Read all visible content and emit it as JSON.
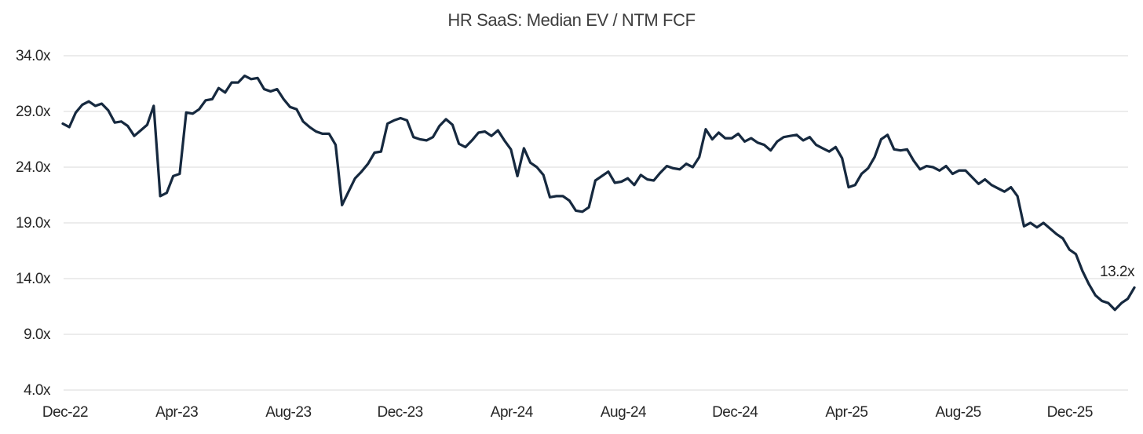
{
  "chart_data": {
    "type": "line",
    "title": "HR SaaS: Median EV / NTM FCF",
    "x_tick_labels": [
      "Dec-22",
      "Apr-23",
      "Aug-23",
      "Dec-23",
      "Apr-24",
      "Aug-24",
      "Dec-24",
      "Apr-25",
      "Aug-25",
      "Dec-25"
    ],
    "y_tick_labels": [
      "34.0x",
      "29.0x",
      "24.0x",
      "19.0x",
      "14.0x",
      "9.0x",
      "4.0x"
    ],
    "y_tick_values": [
      34,
      29,
      24,
      19,
      14,
      9,
      4
    ],
    "ylim": [
      4,
      34
    ],
    "grid": "horizontal-only",
    "legend_position": "none",
    "annotation": {
      "text": "13.2x",
      "value": 13.2
    },
    "colors": {
      "line": "#16293f",
      "gridline": "#d9d9d9",
      "axis_text": "#262626",
      "title_text": "#3d3d3d",
      "background": "#ffffff"
    },
    "series": [
      {
        "values": [
          27.9,
          27.6,
          28.9,
          29.6,
          29.9,
          29.5,
          29.7,
          29.1,
          28.0,
          28.1,
          27.7,
          26.8,
          27.3,
          27.8,
          29.5,
          21.4,
          21.7,
          23.2,
          23.4,
          28.9,
          28.8,
          29.2,
          30.0,
          30.1,
          31.1,
          30.7,
          31.6,
          31.6,
          32.2,
          31.9,
          32.0,
          31.0,
          30.8,
          31.0,
          30.1,
          29.4,
          29.2,
          28.1,
          27.6,
          27.2,
          27.0,
          27.0,
          26.0,
          20.6,
          21.8,
          23.0,
          23.6,
          24.3,
          25.3,
          25.4,
          27.9,
          28.2,
          28.4,
          28.2,
          26.7,
          26.5,
          26.4,
          26.7,
          27.7,
          28.3,
          27.8,
          26.1,
          25.8,
          26.4,
          27.1,
          27.2,
          26.8,
          27.3,
          26.4,
          25.6,
          23.2,
          25.7,
          24.4,
          24.0,
          23.3,
          21.3,
          21.4,
          21.4,
          21.0,
          20.1,
          20.0,
          20.4,
          22.8,
          23.2,
          23.6,
          22.6,
          22.7,
          23.0,
          22.4,
          23.3,
          22.9,
          22.8,
          23.5,
          24.1,
          23.9,
          23.8,
          24.3,
          24.0,
          24.9,
          27.4,
          26.5,
          27.1,
          26.6,
          26.6,
          27.0,
          26.3,
          26.6,
          26.2,
          26.0,
          25.5,
          26.3,
          26.7,
          26.8,
          26.9,
          26.4,
          26.7,
          26.0,
          25.7,
          25.4,
          25.8,
          24.8,
          22.2,
          22.4,
          23.4,
          23.9,
          24.9,
          26.5,
          26.9,
          25.6,
          25.5,
          25.6,
          24.6,
          23.8,
          24.1,
          24.0,
          23.7,
          24.1,
          23.4,
          23.7,
          23.7,
          23.1,
          22.5,
          22.9,
          22.4,
          22.1,
          21.8,
          22.2,
          21.4,
          18.7,
          19.0,
          18.6,
          19.0,
          18.5,
          18.0,
          17.6,
          16.6,
          16.2,
          14.7,
          13.5,
          12.5,
          12.0,
          11.8,
          11.2,
          11.8,
          12.2,
          13.2
        ]
      }
    ]
  }
}
